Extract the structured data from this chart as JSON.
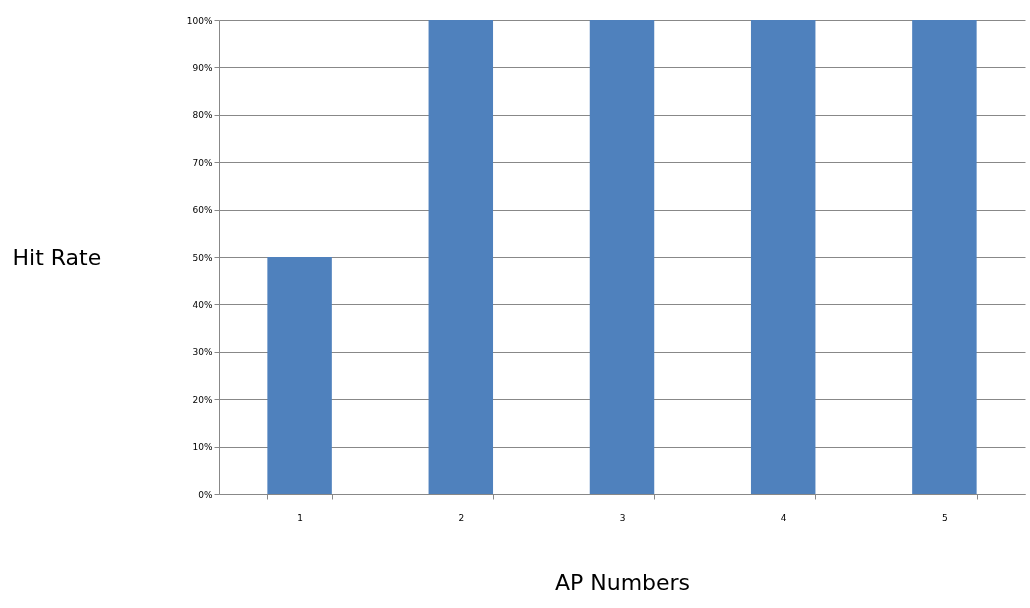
{
  "chart_data": {
    "type": "bar",
    "xlabel": "AP Numbers",
    "ylabel": "Hit Rate",
    "categories": [
      "1",
      "2",
      "3",
      "4",
      "5"
    ],
    "values": [
      50,
      100,
      100,
      100,
      100
    ],
    "color": "#4f81bd",
    "ylim": [
      0,
      100
    ],
    "yticks": [
      {
        "value": 0,
        "label": "0%"
      },
      {
        "value": 10,
        "label": "10%"
      },
      {
        "value": 20,
        "label": "20%"
      },
      {
        "value": 30,
        "label": "30%"
      },
      {
        "value": 40,
        "label": "40%"
      },
      {
        "value": 50,
        "label": "50%"
      },
      {
        "value": 60,
        "label": "60%"
      },
      {
        "value": 70,
        "label": "70%"
      },
      {
        "value": 80,
        "label": "80%"
      },
      {
        "value": 90,
        "label": "90%"
      },
      {
        "value": 100,
        "label": "100%"
      }
    ],
    "grid": "y"
  }
}
